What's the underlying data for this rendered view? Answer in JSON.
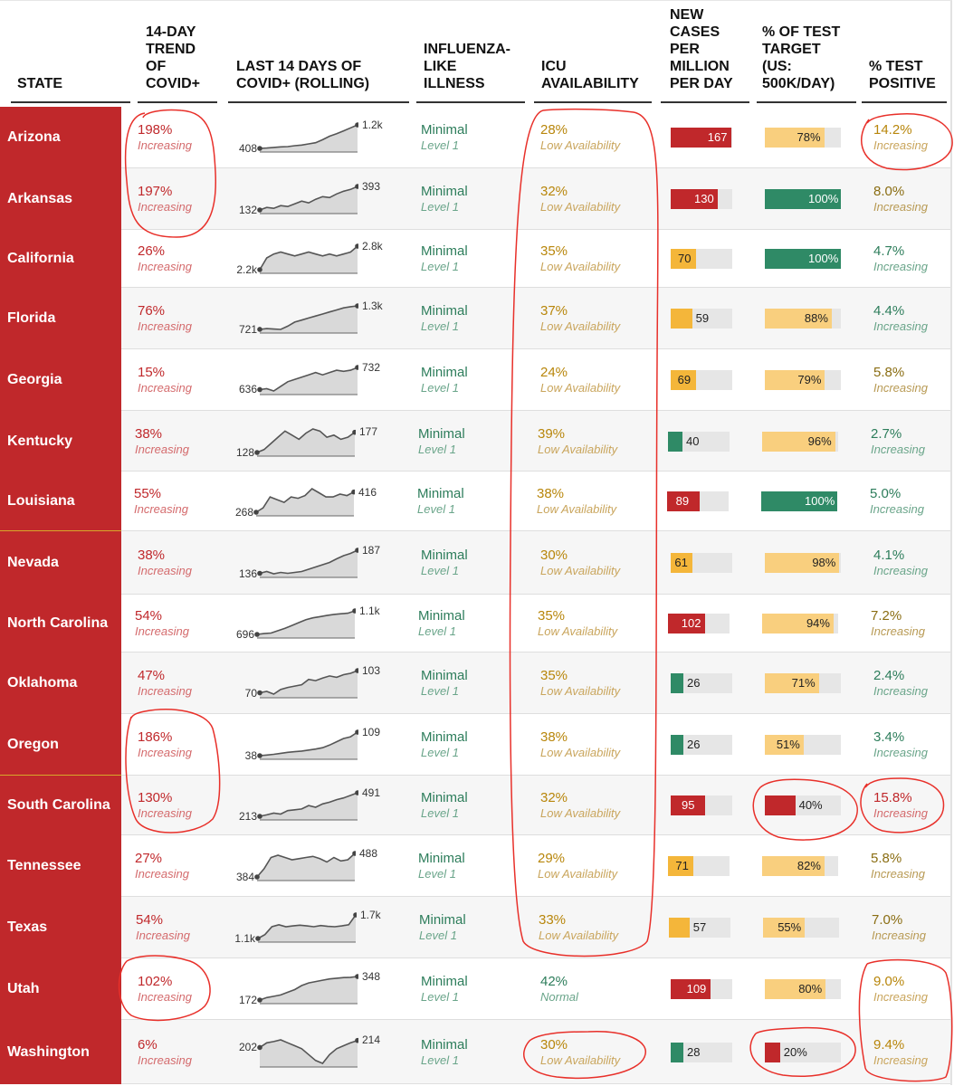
{
  "headers": {
    "state": "STATE",
    "trend_l1": "14-DAY",
    "trend_l2": "TREND",
    "trend_l3": "OF",
    "trend_l4": "COVID+",
    "last14_l1": "LAST 14 DAYS OF",
    "last14_l2": "COVID+ (ROLLING)",
    "ili_l1": "INFLUENZA-",
    "ili_l2": "LIKE",
    "ili_l3": "ILLNESS",
    "icu_l1": "ICU",
    "icu_l2": "AVAILABILITY",
    "cases_l1": "NEW",
    "cases_l2": "CASES",
    "cases_l3": "PER",
    "cases_l4": "MILLION",
    "cases_l5": "PER DAY",
    "target_l1": "% OF TEST",
    "target_l2": "TARGET",
    "target_l3": "(US:",
    "target_l4": "500K/DAY)",
    "positive_l1": "% TEST",
    "positive_l2": "POSITIVE"
  },
  "colors": {
    "state_bg": "#c0282b",
    "bar_red": "#c0282b",
    "bar_yellow": "#f4b63a",
    "bar_light_yellow": "#f9cf7e",
    "bar_green": "#2f8a66",
    "bar_bg": "#e6e6e6",
    "annotation": "#e8302a"
  },
  "rows": [
    {
      "state": "Arizona",
      "trend": "198%",
      "trend_sub": "Increasing",
      "spark_start": "408",
      "spark_end": "1.2k",
      "ili": "Minimal",
      "ili_sub": "Level 1",
      "icu": "28%",
      "icu_sub": "Low Availability",
      "cases": "167",
      "cases_val": 167,
      "cases_color": "red",
      "target": "78%",
      "target_val": 78,
      "target_color": "lightyellow",
      "positive": "14.2%",
      "positive_sub": "Increasing",
      "positive_tone": "gold"
    },
    {
      "state": "Arkansas",
      "trend": "197%",
      "trend_sub": "Increasing",
      "spark_start": "132",
      "spark_end": "393",
      "ili": "Minimal",
      "ili_sub": "Level 1",
      "icu": "32%",
      "icu_sub": "Low Availability",
      "cases": "130",
      "cases_val": 130,
      "cases_color": "red",
      "target": "100%",
      "target_val": 100,
      "target_color": "green",
      "positive": "8.0%",
      "positive_sub": "Increasing",
      "positive_tone": "olive"
    },
    {
      "state": "California",
      "trend": "26%",
      "trend_sub": "Increasing",
      "spark_start": "2.2k",
      "spark_end": "2.8k",
      "ili": "Minimal",
      "ili_sub": "Level 1",
      "icu": "35%",
      "icu_sub": "Low Availability",
      "cases": "70",
      "cases_val": 70,
      "cases_color": "yellow",
      "target": "100%",
      "target_val": 100,
      "target_color": "green",
      "positive": "4.7%",
      "positive_sub": "Increasing",
      "positive_tone": "green"
    },
    {
      "state": "Florida",
      "trend": "76%",
      "trend_sub": "Increasing",
      "spark_start": "721",
      "spark_end": "1.3k",
      "ili": "Minimal",
      "ili_sub": "Level 1",
      "icu": "37%",
      "icu_sub": "Low Availability",
      "cases": "59",
      "cases_val": 59,
      "cases_color": "yellow",
      "target": "88%",
      "target_val": 88,
      "target_color": "lightyellow",
      "positive": "4.4%",
      "positive_sub": "Increasing",
      "positive_tone": "green"
    },
    {
      "state": "Georgia",
      "trend": "15%",
      "trend_sub": "Increasing",
      "spark_start": "636",
      "spark_end": "732",
      "ili": "Minimal",
      "ili_sub": "Level 1",
      "icu": "24%",
      "icu_sub": "Low Availability",
      "cases": "69",
      "cases_val": 69,
      "cases_color": "yellow",
      "target": "79%",
      "target_val": 79,
      "target_color": "lightyellow",
      "positive": "5.8%",
      "positive_sub": "Increasing",
      "positive_tone": "olive"
    },
    {
      "state": "Kentucky",
      "trend": "38%",
      "trend_sub": "Increasing",
      "spark_start": "128",
      "spark_end": "177",
      "ili": "Minimal",
      "ili_sub": "Level 1",
      "icu": "39%",
      "icu_sub": "Low Availability",
      "cases": "40",
      "cases_val": 40,
      "cases_color": "green",
      "target": "96%",
      "target_val": 96,
      "target_color": "lightyellow",
      "positive": "2.7%",
      "positive_sub": "Increasing",
      "positive_tone": "green"
    },
    {
      "state": "Louisiana",
      "trend": "55%",
      "trend_sub": "Increasing",
      "spark_start": "268",
      "spark_end": "416",
      "ili": "Minimal",
      "ili_sub": "Level 1",
      "icu": "38%",
      "icu_sub": "Low Availability",
      "cases": "89",
      "cases_val": 89,
      "cases_color": "red",
      "target": "100%",
      "target_val": 100,
      "target_color": "green",
      "positive": "5.0%",
      "positive_sub": "Increasing",
      "positive_tone": "green"
    },
    {
      "state": "Nevada",
      "trend": "38%",
      "trend_sub": "Increasing",
      "spark_start": "136",
      "spark_end": "187",
      "ili": "Minimal",
      "ili_sub": "Level 1",
      "icu": "30%",
      "icu_sub": "Low Availability",
      "cases": "61",
      "cases_val": 61,
      "cases_color": "yellow",
      "target": "98%",
      "target_val": 98,
      "target_color": "lightyellow",
      "positive": "4.1%",
      "positive_sub": "Increasing",
      "positive_tone": "green"
    },
    {
      "state": "North Carolina",
      "trend": "54%",
      "trend_sub": "Increasing",
      "spark_start": "696",
      "spark_end": "1.1k",
      "ili": "Minimal",
      "ili_sub": "Level 1",
      "icu": "35%",
      "icu_sub": "Low Availability",
      "cases": "102",
      "cases_val": 102,
      "cases_color": "red",
      "target": "94%",
      "target_val": 94,
      "target_color": "lightyellow",
      "positive": "7.2%",
      "positive_sub": "Increasing",
      "positive_tone": "olive"
    },
    {
      "state": "Oklahoma",
      "trend": "47%",
      "trend_sub": "Increasing",
      "spark_start": "70",
      "spark_end": "103",
      "ili": "Minimal",
      "ili_sub": "Level 1",
      "icu": "35%",
      "icu_sub": "Low Availability",
      "cases": "26",
      "cases_val": 26,
      "cases_color": "green",
      "target": "71%",
      "target_val": 71,
      "target_color": "lightyellow",
      "positive": "2.4%",
      "positive_sub": "Increasing",
      "positive_tone": "green"
    },
    {
      "state": "Oregon",
      "trend": "186%",
      "trend_sub": "Increasing",
      "spark_start": "38",
      "spark_end": "109",
      "ili": "Minimal",
      "ili_sub": "Level 1",
      "icu": "38%",
      "icu_sub": "Low Availability",
      "cases": "26",
      "cases_val": 26,
      "cases_color": "green",
      "target": "51%",
      "target_val": 51,
      "target_color": "lightyellow",
      "positive": "3.4%",
      "positive_sub": "Increasing",
      "positive_tone": "green"
    },
    {
      "state": "South Carolina",
      "trend": "130%",
      "trend_sub": "Increasing",
      "spark_start": "213",
      "spark_end": "491",
      "ili": "Minimal",
      "ili_sub": "Level 1",
      "icu": "32%",
      "icu_sub": "Low Availability",
      "cases": "95",
      "cases_val": 95,
      "cases_color": "red",
      "target": "40%",
      "target_val": 40,
      "target_color": "red",
      "positive": "15.8%",
      "positive_sub": "Increasing",
      "positive_tone": "red"
    },
    {
      "state": "Tennessee",
      "trend": "27%",
      "trend_sub": "Increasing",
      "spark_start": "384",
      "spark_end": "488",
      "ili": "Minimal",
      "ili_sub": "Level 1",
      "icu": "29%",
      "icu_sub": "Low Availability",
      "cases": "71",
      "cases_val": 71,
      "cases_color": "yellow",
      "target": "82%",
      "target_val": 82,
      "target_color": "lightyellow",
      "positive": "5.8%",
      "positive_sub": "Increasing",
      "positive_tone": "olive"
    },
    {
      "state": "Texas",
      "trend": "54%",
      "trend_sub": "Increasing",
      "spark_start": "1.1k",
      "spark_end": "1.7k",
      "ili": "Minimal",
      "ili_sub": "Level 1",
      "icu": "33%",
      "icu_sub": "Low Availability",
      "cases": "57",
      "cases_val": 57,
      "cases_color": "yellow",
      "target": "55%",
      "target_val": 55,
      "target_color": "lightyellow",
      "positive": "7.0%",
      "positive_sub": "Increasing",
      "positive_tone": "olive"
    },
    {
      "state": "Utah",
      "trend": "102%",
      "trend_sub": "Increasing",
      "spark_start": "172",
      "spark_end": "348",
      "ili": "Minimal",
      "ili_sub": "Level 1",
      "icu": "42%",
      "icu_sub": "Normal",
      "icu_tone": "green",
      "cases": "109",
      "cases_val": 109,
      "cases_color": "red",
      "target": "80%",
      "target_val": 80,
      "target_color": "lightyellow",
      "positive": "9.0%",
      "positive_sub": "Increasing",
      "positive_tone": "gold"
    },
    {
      "state": "Washington",
      "trend": "6%",
      "trend_sub": "Increasing",
      "spark_start": "202",
      "spark_end": "214",
      "ili": "Minimal",
      "ili_sub": "Level 1",
      "icu": "30%",
      "icu_sub": "Low Availability",
      "cases": "28",
      "cases_val": 28,
      "cases_color": "green",
      "target": "20%",
      "target_val": 20,
      "target_color": "red",
      "positive": "9.4%",
      "positive_sub": "Increasing",
      "positive_tone": "gold"
    }
  ],
  "chart_data": {
    "type": "table",
    "columns": [
      "STATE",
      "14-DAY TREND OF COVID+",
      "LAST 14 DAYS OF COVID+ (ROLLING)",
      "INFLUENZA-LIKE ILLNESS",
      "ICU AVAILABILITY",
      "NEW CASES PER MILLION PER DAY",
      "% OF TEST TARGET (US: 500K/DAY)",
      "% TEST POSITIVE"
    ],
    "sparklines": [
      [
        408,
        420,
        440,
        460,
        470,
        500,
        520,
        560,
        600,
        700,
        820,
        900,
        1000,
        1100,
        1200
      ],
      [
        132,
        160,
        150,
        180,
        170,
        200,
        230,
        210,
        250,
        280,
        270,
        310,
        340,
        360,
        393
      ],
      [
        2200,
        2500,
        2600,
        2650,
        2600,
        2550,
        2600,
        2650,
        2600,
        2550,
        2600,
        2550,
        2600,
        2650,
        2800
      ],
      [
        721,
        740,
        730,
        720,
        800,
        900,
        950,
        1000,
        1050,
        1100,
        1150,
        1200,
        1250,
        1280,
        1300
      ],
      [
        636,
        640,
        630,
        650,
        670,
        680,
        690,
        700,
        710,
        700,
        710,
        720,
        715,
        720,
        732
      ],
      [
        128,
        135,
        150,
        165,
        180,
        170,
        160,
        175,
        185,
        180,
        165,
        170,
        160,
        165,
        177
      ],
      [
        268,
        300,
        380,
        360,
        340,
        380,
        370,
        390,
        440,
        410,
        380,
        380,
        400,
        390,
        416
      ],
      [
        136,
        140,
        135,
        138,
        136,
        138,
        140,
        145,
        150,
        155,
        160,
        168,
        175,
        180,
        187
      ],
      [
        696,
        710,
        720,
        760,
        800,
        850,
        900,
        950,
        980,
        1000,
        1020,
        1040,
        1050,
        1060,
        1100
      ],
      [
        70,
        72,
        68,
        75,
        78,
        80,
        82,
        90,
        88,
        92,
        95,
        93,
        97,
        99,
        103
      ],
      [
        38,
        40,
        42,
        45,
        48,
        50,
        52,
        55,
        58,
        62,
        70,
        80,
        90,
        95,
        109
      ],
      [
        213,
        230,
        250,
        240,
        280,
        290,
        300,
        340,
        320,
        360,
        380,
        410,
        430,
        460,
        491
      ],
      [
        384,
        420,
        470,
        480,
        470,
        460,
        465,
        470,
        475,
        465,
        450,
        470,
        455,
        460,
        488
      ],
      [
        1100,
        1200,
        1400,
        1450,
        1400,
        1420,
        1440,
        1420,
        1400,
        1430,
        1410,
        1400,
        1420,
        1450,
        1700
      ],
      [
        172,
        190,
        200,
        210,
        230,
        250,
        280,
        300,
        310,
        320,
        330,
        335,
        340,
        342,
        348
      ],
      [
        202,
        210,
        212,
        215,
        210,
        205,
        200,
        190,
        180,
        175,
        190,
        200,
        205,
        210,
        214
      ]
    ]
  }
}
